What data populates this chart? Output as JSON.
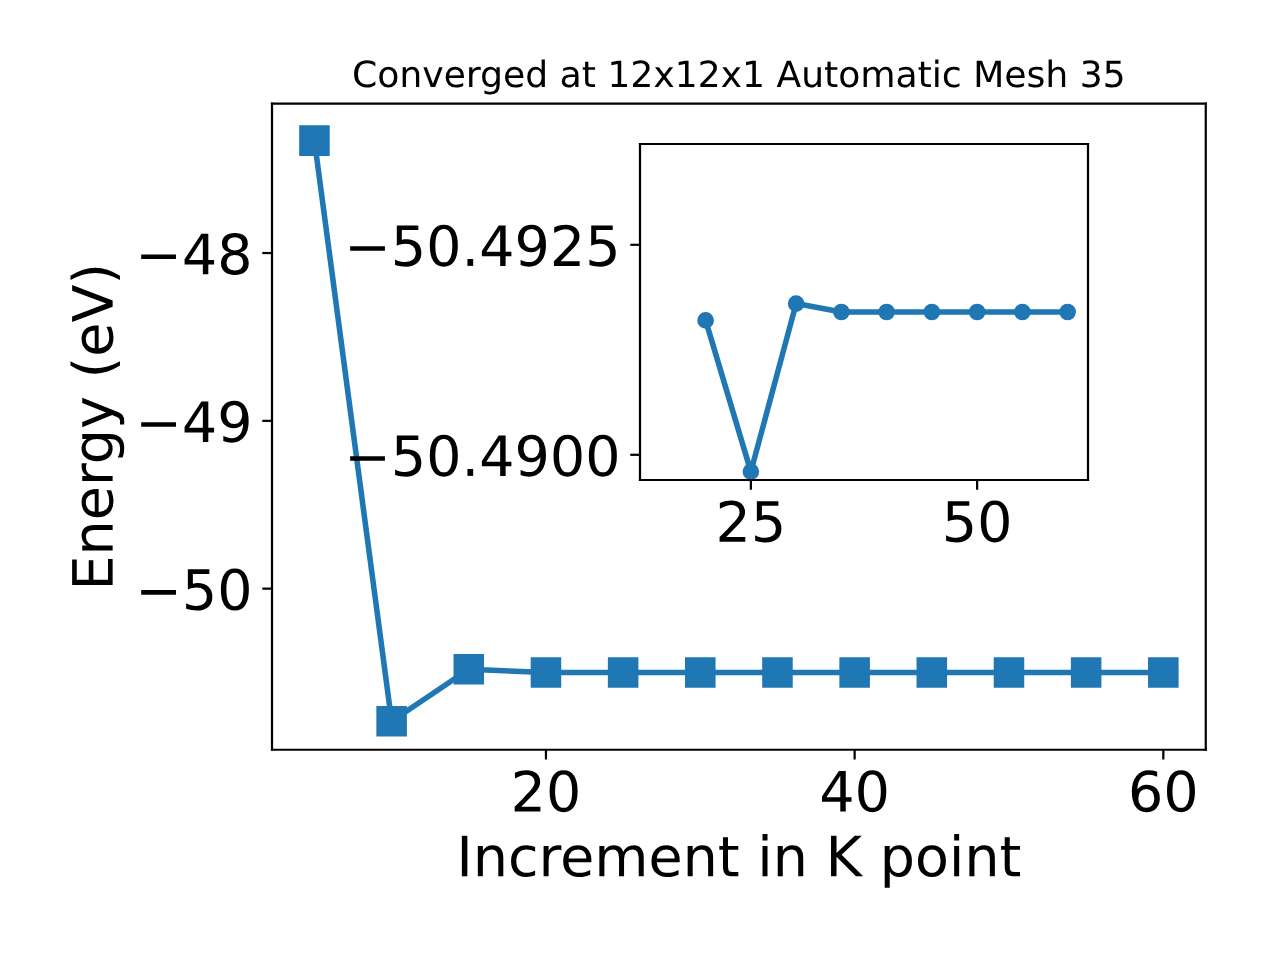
{
  "chart_data": [
    {
      "type": "line",
      "title": "Converged at 12x12x1 Automatic Mesh 35",
      "xlabel": "Increment in K point",
      "ylabel": "Energy (eV)",
      "x": [
        5,
        10,
        15,
        20,
        25,
        30,
        35,
        40,
        45,
        50,
        55,
        60
      ],
      "series": [
        {
          "color": "#1f77b4",
          "values": [
            -47.33,
            -50.79,
            -50.48,
            -50.5,
            -50.5,
            -50.5,
            -50.5,
            -50.5,
            -50.5,
            -50.5,
            -50.5,
            -50.5
          ]
        }
      ],
      "marker": "square",
      "line_style": "solid",
      "grid": false,
      "legend": false,
      "xlim": [
        2.25,
        62.75
      ],
      "xticks": [
        20,
        40,
        60
      ],
      "ylim": [
        -50.96,
        -47.11
      ],
      "yticks": [
        {
          "value": -48,
          "label": "−48"
        },
        {
          "value": -49,
          "label": "−49"
        },
        {
          "value": -50,
          "label": "−50"
        }
      ]
    },
    {
      "type": "line",
      "x": [
        20,
        25,
        30,
        35,
        40,
        45,
        50,
        55,
        60
      ],
      "series": [
        {
          "color": "#1f77b4",
          "values": [
            -50.4916,
            -50.4898,
            -50.4918,
            -50.4917,
            -50.4917,
            -50.4917,
            -50.4917,
            -50.4917,
            -50.4917
          ]
        }
      ],
      "marker": "circle",
      "line_style": "solid",
      "grid": false,
      "legend": false,
      "xlim": [
        12.75,
        62.25
      ],
      "xticks": [
        25,
        50
      ],
      "ylim": [
        -50.4897,
        -50.4937
      ],
      "yticks": [
        {
          "value": -50.4925,
          "label": "−50.4925"
        },
        {
          "value": -50.49,
          "label": "−50.4900"
        }
      ]
    }
  ]
}
